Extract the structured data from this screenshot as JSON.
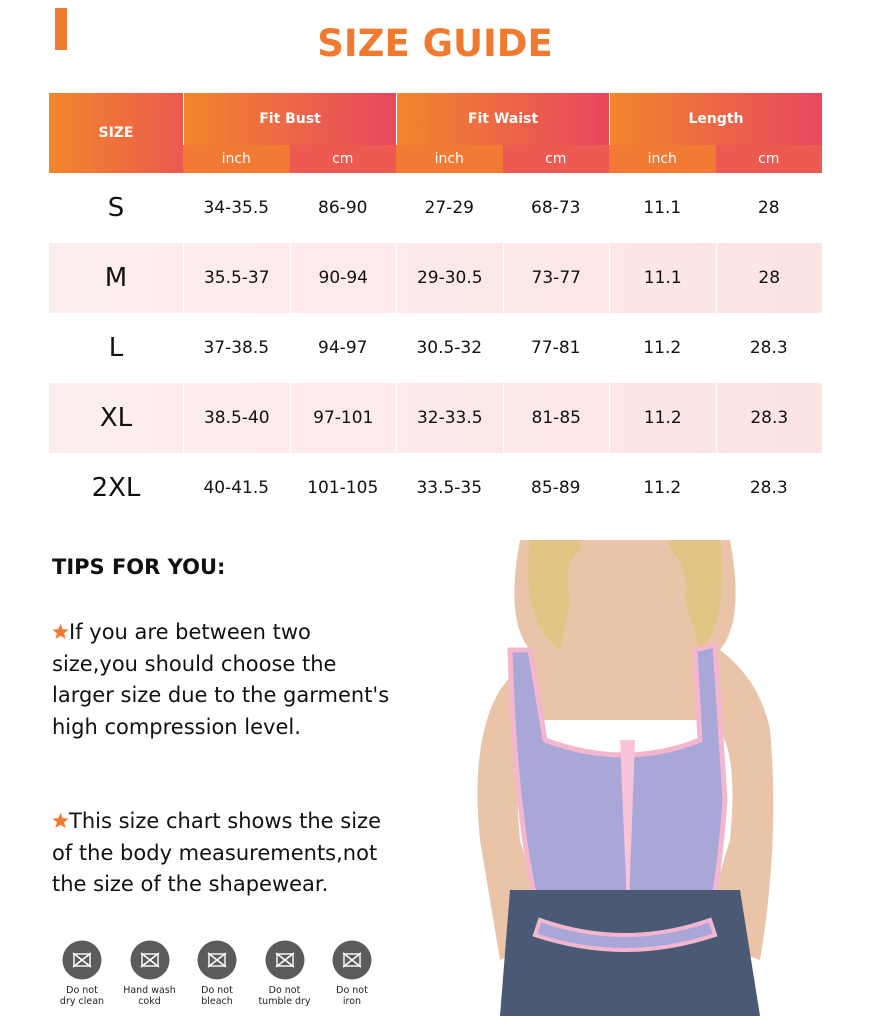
{
  "header": {
    "title": "SIZE GUIDE"
  },
  "table": {
    "size_header": "SIZE",
    "groups": [
      "Fit Bust",
      "Fit Waist",
      "Length"
    ],
    "units": [
      "inch",
      "cm",
      "inch",
      "cm",
      "inch",
      "cm"
    ],
    "rows": [
      [
        "S",
        "34-35.5",
        "86-90",
        "27-29",
        "68-73",
        "11.1",
        "28"
      ],
      [
        "M",
        "35.5-37",
        "90-94",
        "29-30.5",
        "73-77",
        "11.1",
        "28"
      ],
      [
        "L",
        "37-38.5",
        "94-97",
        "30.5-32",
        "77-81",
        "11.2",
        "28.3"
      ],
      [
        "XL",
        "38.5-40",
        "97-101",
        "32-33.5",
        "81-85",
        "11.2",
        "28.3"
      ],
      [
        "2XL",
        "40-41.5",
        "101-105",
        "33.5-35",
        "85-89",
        "11.2",
        "28.3"
      ]
    ]
  },
  "tips": {
    "title": "TIPS FOR YOU:",
    "items": [
      [
        "If you are between two",
        "size,you should choose the",
        "larger size due to the garment's",
        "high compression level."
      ],
      [
        "This size chart shows the size",
        "of the body measurements,not",
        "the size of the shapewear."
      ]
    ]
  },
  "care": [
    [
      "Do not",
      "dry clean"
    ],
    [
      "Hand wash",
      "cokd"
    ],
    [
      "Do not",
      "bleach"
    ],
    [
      "Do not",
      "tumble dry"
    ],
    [
      "Do not",
      "iron"
    ]
  ]
}
